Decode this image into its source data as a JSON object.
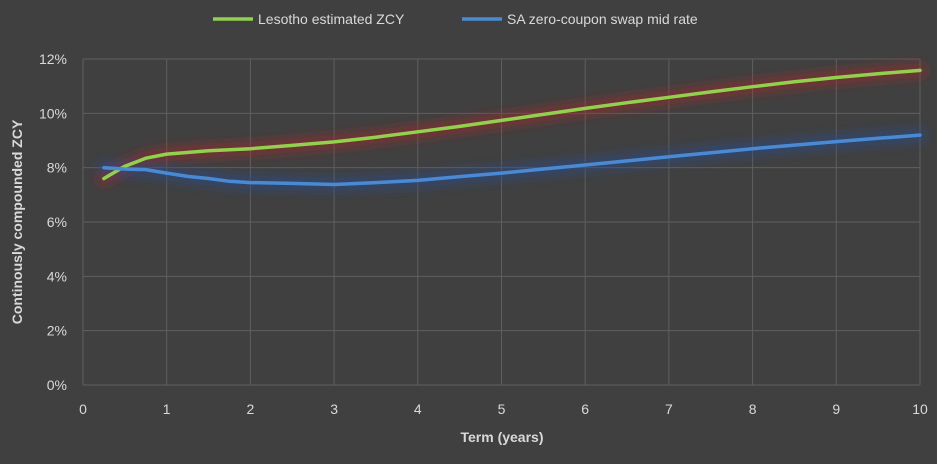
{
  "chart_data": {
    "type": "line",
    "xlabel": "Term (years)",
    "ylabel": "Continously compounded ZCY",
    "xlim": [
      0,
      10
    ],
    "ylim": [
      0,
      12
    ],
    "xticks": [
      0,
      1,
      2,
      3,
      4,
      5,
      6,
      7,
      8,
      9,
      10
    ],
    "xtick_labels": [
      "0",
      "1",
      "2",
      "3",
      "4",
      "5",
      "6",
      "7",
      "8",
      "9",
      "10"
    ],
    "yticks": [
      0,
      2,
      4,
      6,
      8,
      10,
      12
    ],
    "ytick_labels": [
      "0%",
      "2%",
      "4%",
      "6%",
      "8%",
      "10%",
      "12%"
    ],
    "grid": "major gridlines on both axes",
    "legend_position": "top",
    "background_color": "#404040",
    "grid_color": "#5f5f5f",
    "text_color": "#d9d9d9",
    "series": [
      {
        "name": "Lesotho estimated ZCY",
        "color": "#92d050",
        "glow": "#a52a2a",
        "points": [
          [
            0.25,
            7.6
          ],
          [
            0.5,
            8.05
          ],
          [
            0.75,
            8.35
          ],
          [
            1,
            8.5
          ],
          [
            1.5,
            8.62
          ],
          [
            2,
            8.7
          ],
          [
            2.5,
            8.82
          ],
          [
            3,
            8.95
          ],
          [
            3.5,
            9.12
          ],
          [
            4,
            9.32
          ],
          [
            4.5,
            9.52
          ],
          [
            5,
            9.74
          ],
          [
            5.5,
            9.96
          ],
          [
            6,
            10.18
          ],
          [
            6.5,
            10.39
          ],
          [
            7,
            10.59
          ],
          [
            7.5,
            10.79
          ],
          [
            8,
            10.98
          ],
          [
            8.5,
            11.16
          ],
          [
            9,
            11.32
          ],
          [
            9.5,
            11.46
          ],
          [
            10,
            11.58
          ]
        ]
      },
      {
        "name": "SA zero-coupon swap mid rate",
        "color": "#4a8ad4",
        "glow": "#2a4d8f",
        "points": [
          [
            0.25,
            8.0
          ],
          [
            0.5,
            7.95
          ],
          [
            0.75,
            7.93
          ],
          [
            1,
            7.8
          ],
          [
            1.25,
            7.68
          ],
          [
            1.5,
            7.6
          ],
          [
            1.75,
            7.5
          ],
          [
            2,
            7.45
          ],
          [
            2.5,
            7.42
          ],
          [
            3,
            7.38
          ],
          [
            3.5,
            7.45
          ],
          [
            4,
            7.53
          ],
          [
            4.5,
            7.67
          ],
          [
            5,
            7.8
          ],
          [
            5.5,
            7.95
          ],
          [
            6,
            8.1
          ],
          [
            6.5,
            8.25
          ],
          [
            7,
            8.4
          ],
          [
            7.5,
            8.55
          ],
          [
            8,
            8.7
          ],
          [
            8.5,
            8.83
          ],
          [
            9,
            8.96
          ],
          [
            9.5,
            9.08
          ],
          [
            10,
            9.2
          ]
        ]
      }
    ]
  }
}
